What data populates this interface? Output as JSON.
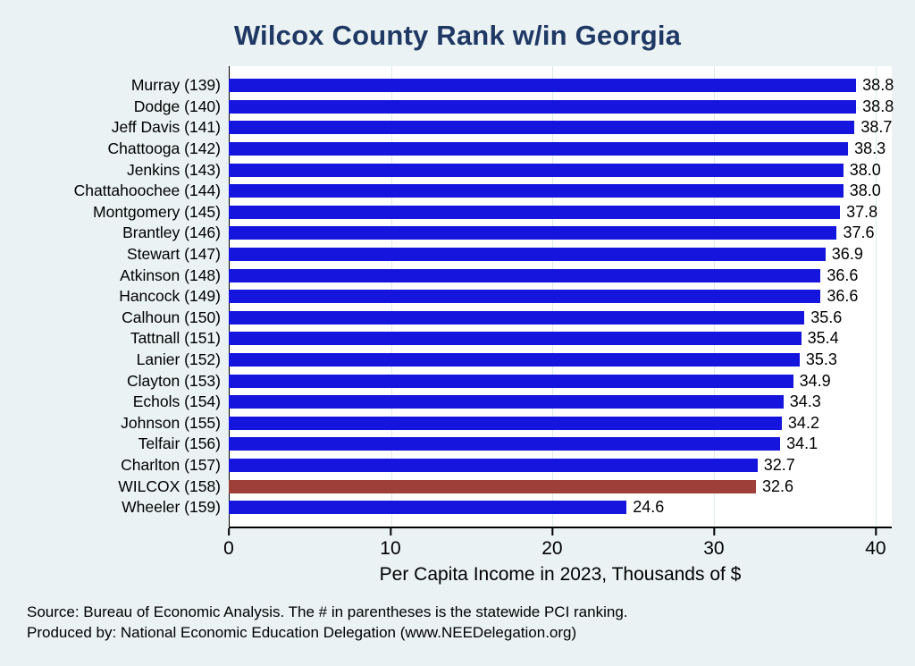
{
  "title": "Wilcox County Rank w/in Georgia",
  "chart_data": {
    "type": "bar",
    "orientation": "horizontal",
    "title": "Wilcox County Rank w/in Georgia",
    "categories": [
      "Murray (139)",
      "Dodge (140)",
      "Jeff Davis (141)",
      "Chattooga (142)",
      "Jenkins (143)",
      "Chattahoochee (144)",
      "Montgomery (145)",
      "Brantley (146)",
      "Stewart (147)",
      "Atkinson (148)",
      "Hancock (149)",
      "Calhoun (150)",
      "Tattnall (151)",
      "Lanier (152)",
      "Clayton (153)",
      "Echols (154)",
      "Johnson (155)",
      "Telfair (156)",
      "Charlton (157)",
      "WILCOX (158)",
      "Wheeler (159)"
    ],
    "values": [
      38.8,
      38.8,
      38.7,
      38.3,
      38.0,
      38.0,
      37.8,
      37.6,
      36.9,
      36.6,
      36.6,
      35.6,
      35.4,
      35.3,
      34.9,
      34.3,
      34.2,
      34.1,
      32.7,
      32.6,
      24.6
    ],
    "highlight_index": 19,
    "xlabel": "Per Capita Income in 2023, Thousands of $",
    "xticks": [
      0,
      10,
      20,
      30,
      40
    ],
    "xlim": [
      0,
      41
    ],
    "grid": true,
    "legend": "none",
    "colors": {
      "bar": "#1515dd",
      "highlight_bar": "#9e3f3a",
      "title_text": "#1f3864",
      "background": "#eaf2f3",
      "plot_background": "#ffffff",
      "gridline": "#dde9eb",
      "axis": "#000000"
    }
  },
  "footer": {
    "line1": "Source: Bureau of Economic Analysis. The # in parentheses is the statewide PCI ranking.",
    "line2": "Produced by: National Economic Education Delegation (www.NEEDelegation.org)"
  }
}
